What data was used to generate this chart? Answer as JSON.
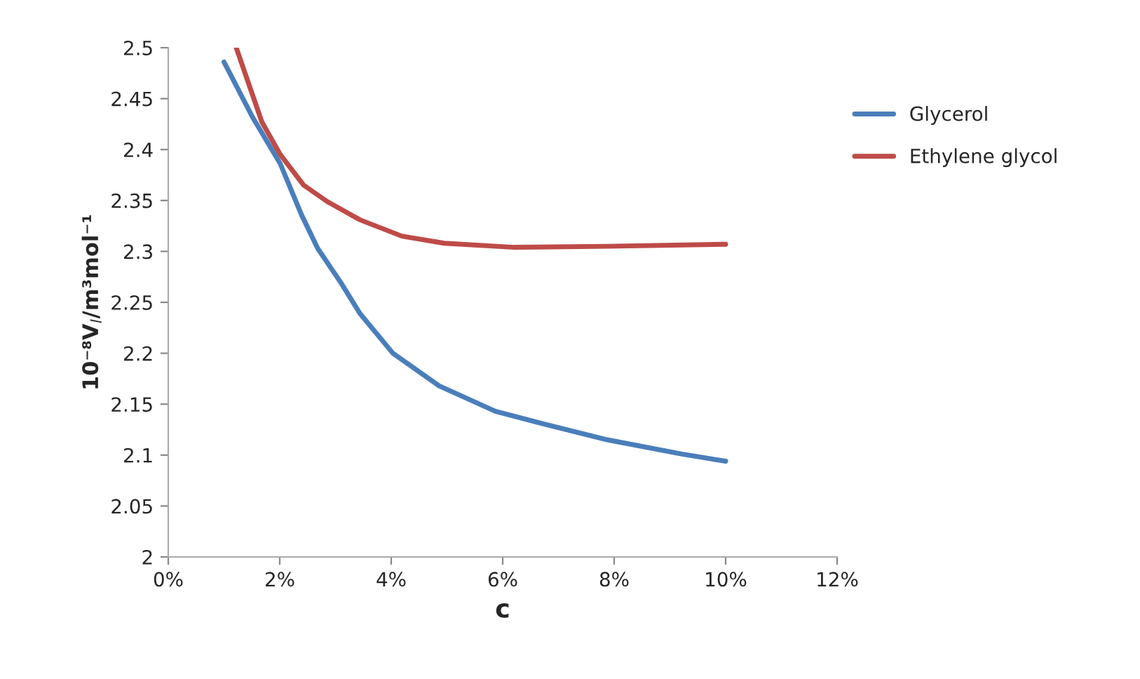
{
  "chart_data": {
    "type": "line",
    "xlabel": "c",
    "ylabel": "10⁻⁸V$_{l}$/m³mol⁻¹",
    "xlim": [
      0,
      12
    ],
    "xticks": [
      {
        "value": 0,
        "label": "0%"
      },
      {
        "value": 2,
        "label": "2%"
      },
      {
        "value": 4,
        "label": "4%"
      },
      {
        "value": 6,
        "label": "6%"
      },
      {
        "value": 8,
        "label": "8%"
      },
      {
        "value": 10,
        "label": "10%"
      },
      {
        "value": 12,
        "label": "12%"
      }
    ],
    "ylim": [
      2,
      2.5
    ],
    "yticks": [
      2,
      2.05,
      2.1,
      2.15,
      2.2,
      2.25,
      2.3,
      2.35,
      2.4,
      2.45,
      2.5
    ],
    "grid": false,
    "legend": "top right",
    "marker": "none",
    "line_style": "solid",
    "series": [
      {
        "name": "Glycerol",
        "color": "#4a7ebb",
        "x": [
          1.0,
          1.51,
          2.01,
          2.39,
          2.68,
          3.1,
          3.44,
          4.03,
          4.86,
          5.87,
          6.71,
          7.88,
          9.22,
          10.0
        ],
        "values": [
          2.486,
          2.432,
          2.386,
          2.336,
          2.303,
          2.269,
          2.239,
          2.2,
          2.168,
          2.143,
          2.131,
          2.115,
          2.101,
          2.094
        ]
      },
      {
        "name": "Ethylene glycol",
        "color": "#be4b48",
        "x": [
          1.22,
          1.68,
          2.01,
          2.43,
          2.85,
          3.44,
          4.19,
          4.95,
          6.21,
          7.88,
          10.0
        ],
        "values": [
          2.5,
          2.427,
          2.395,
          2.365,
          2.349,
          2.331,
          2.315,
          2.308,
          2.304,
          2.305,
          2.307
        ]
      }
    ]
  }
}
